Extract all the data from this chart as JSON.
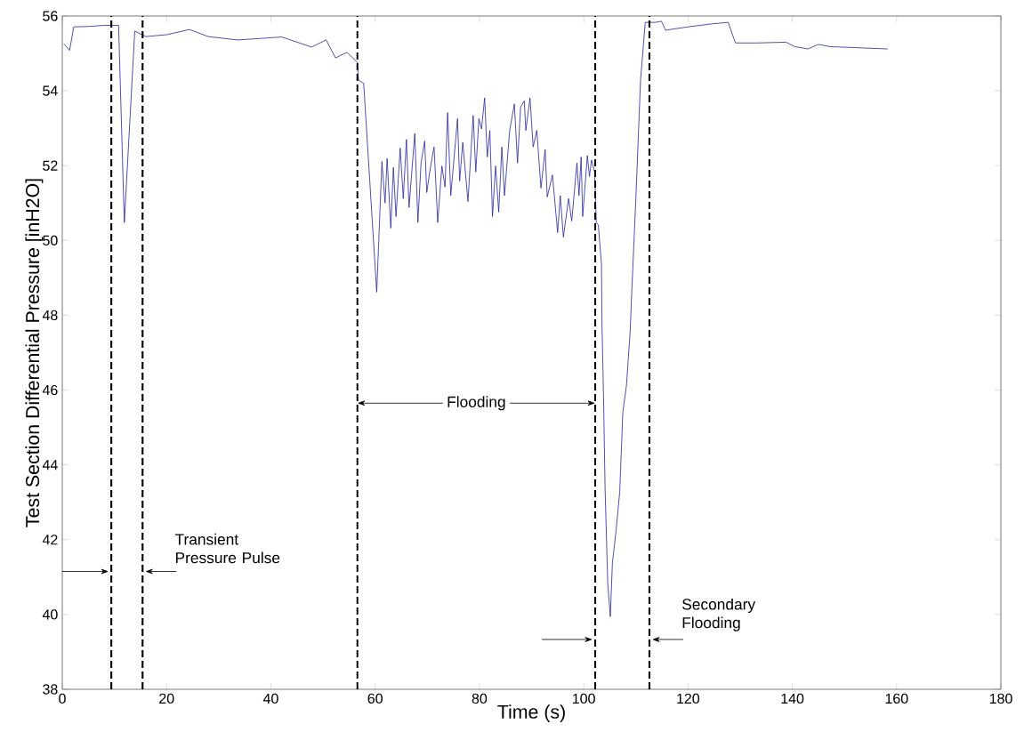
{
  "chart_data": {
    "type": "line",
    "xlabel": "Time (s)",
    "ylabel": "Test Section Differential Pressure [inH2O]",
    "xlim": [
      0,
      180
    ],
    "ylim": [
      38,
      56
    ],
    "xticks": [
      0,
      20,
      40,
      60,
      80,
      100,
      120,
      140,
      160,
      180
    ],
    "yticks": [
      38,
      40,
      42,
      44,
      46,
      48,
      50,
      52,
      54,
      56
    ],
    "grid": false,
    "marker": "none",
    "line_style": "solid",
    "series": [
      {
        "color": "#24249a",
        "x": [
          0.3,
          1.4,
          2.2,
          5,
          8,
          10.8,
          11.9,
          13.9,
          16,
          20,
          24.4,
          28,
          33.6,
          38,
          42.1,
          47.8,
          50.6,
          52.4,
          54.6,
          56.6,
          56.8,
          57.8,
          60.3,
          61.3,
          61.9,
          62.3,
          63.0,
          63.5,
          64.0,
          64.8,
          65.4,
          66.0,
          66.5,
          67.6,
          68.2,
          68.8,
          69.5,
          69.9,
          70.6,
          71.3,
          72.0,
          72.8,
          73.4,
          73.9,
          74.5,
          75.8,
          76.2,
          76.8,
          77.8,
          78.8,
          79.3,
          79.9,
          80.4,
          81.0,
          81.5,
          82.0,
          82.5,
          83.1,
          83.7,
          84.3,
          84.8,
          85.8,
          86.7,
          87.3,
          87.9,
          88.6,
          88.9,
          89.7,
          90.3,
          91.0,
          91.8,
          92.6,
          93.0,
          94.0,
          95.0,
          95.5,
          96.1,
          97.1,
          97.7,
          98.7,
          99.1,
          99.5,
          99.8,
          100.7,
          101.1,
          101.5,
          102.1,
          102.4,
          102.8,
          103.4,
          103.5,
          103.8,
          104.1,
          104.6,
          105.1,
          105.5,
          106.2,
          106.9,
          107.5,
          108.2,
          108.9,
          109.2,
          110.0,
          110.9,
          111.8,
          113.7,
          114.9,
          115.7,
          120.0,
          124.6,
          127.7,
          129.1,
          133.4,
          138.8,
          140.5,
          143.0,
          145.0,
          147.3,
          158.3
        ],
        "values": [
          55.26,
          55.08,
          55.71,
          55.72,
          55.75,
          55.75,
          50.48,
          55.6,
          55.45,
          55.5,
          55.64,
          55.45,
          55.36,
          55.4,
          55.44,
          55.17,
          55.36,
          54.88,
          55.03,
          54.76,
          54.29,
          54.2,
          48.62,
          52.11,
          51.0,
          52.19,
          50.33,
          51.95,
          50.64,
          52.47,
          51.12,
          52.7,
          50.88,
          52.86,
          50.48,
          52.07,
          52.66,
          51.28,
          51.95,
          52.5,
          50.48,
          51.99,
          51.43,
          53.42,
          51.2,
          53.26,
          51.59,
          52.62,
          51.04,
          53.34,
          51.83,
          53.26,
          52.98,
          53.81,
          52.23,
          52.94,
          50.64,
          51.99,
          50.76,
          52.5,
          51.2,
          52.94,
          53.65,
          52.07,
          53.57,
          53.73,
          52.94,
          53.81,
          52.5,
          52.94,
          51.4,
          52.43,
          51.16,
          51.75,
          50.21,
          51.2,
          50.09,
          51.12,
          50.52,
          52.07,
          51.2,
          52.23,
          50.64,
          52.27,
          51.71,
          52.15,
          51.83,
          50.48,
          50.41,
          49.37,
          47.79,
          45.81,
          43.35,
          40.85,
          39.94,
          41.37,
          42.24,
          43.27,
          45.41,
          46.13,
          47.55,
          48.58,
          51.12,
          54.29,
          55.83,
          55.83,
          55.86,
          55.62,
          55.71,
          55.79,
          55.83,
          55.28,
          55.28,
          55.3,
          55.18,
          55.12,
          55.24,
          55.18,
          55.12
        ]
      }
    ],
    "ref_lines": [
      {
        "axis": "x",
        "value": 9.4,
        "color": "#000000",
        "line_style": "dashed"
      },
      {
        "axis": "x",
        "value": 15.4,
        "color": "#000000",
        "line_style": "dashed",
        "label": "Transient Pressure Pulse"
      },
      {
        "axis": "x",
        "value": 56.6,
        "color": "#000000",
        "line_style": "dashed"
      },
      {
        "axis": "x",
        "value": 102.2,
        "color": "#000000",
        "line_style": "dashed",
        "label": "Flooding"
      },
      {
        "axis": "x",
        "value": 112.6,
        "color": "#000000",
        "line_style": "dashed",
        "label": "Secondary Flooding"
      }
    ]
  }
}
